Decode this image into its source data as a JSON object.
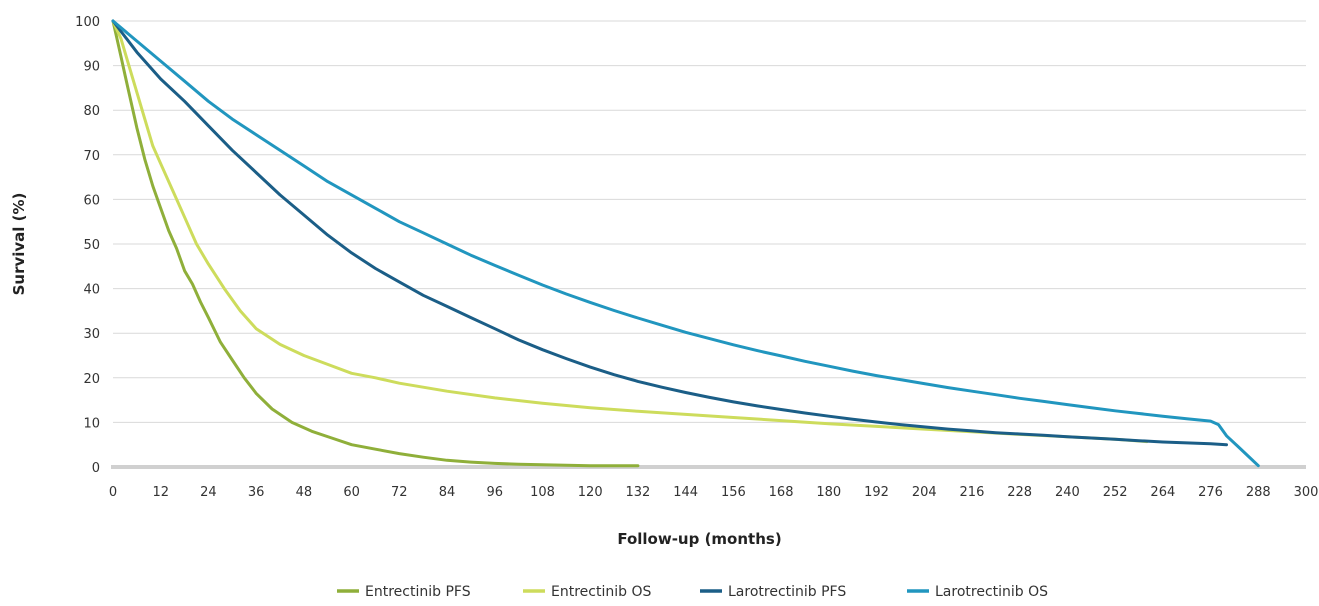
{
  "chart_data": {
    "type": "line",
    "xlabel": "Follow-up (months)",
    "ylabel": "Survival (%)",
    "xlim": [
      0,
      300
    ],
    "ylim": [
      0,
      100
    ],
    "xticks": [
      0,
      12,
      24,
      36,
      48,
      60,
      72,
      84,
      96,
      108,
      120,
      132,
      144,
      156,
      168,
      180,
      192,
      204,
      216,
      228,
      240,
      252,
      264,
      276,
      288,
      300
    ],
    "yticks": [
      0,
      10,
      20,
      30,
      40,
      50,
      60,
      70,
      80,
      90,
      100
    ],
    "grid": "horizontal",
    "legend_position": "bottom",
    "series": [
      {
        "name": "Entrectinib PFS",
        "color": "#8faf3a",
        "x": [
          0,
          1,
          2,
          3,
          4,
          5,
          6,
          8,
          10,
          12,
          14,
          16,
          18,
          20,
          22,
          24,
          27,
          30,
          33,
          36,
          40,
          45,
          50,
          55,
          60,
          66,
          72,
          78,
          84,
          90,
          96,
          102,
          108,
          114,
          120,
          126,
          132
        ],
        "y": [
          100,
          96,
          92,
          88,
          84,
          80,
          76,
          69,
          63,
          58,
          53,
          49,
          44,
          41,
          37,
          33.5,
          28,
          24,
          20,
          16.5,
          13,
          10,
          8,
          6.5,
          5,
          4,
          3,
          2.2,
          1.5,
          1.1,
          0.8,
          0.6,
          0.5,
          0.4,
          0.3,
          0.3,
          0.3
        ]
      },
      {
        "name": "Entrectinib OS",
        "color": "#cddc5c",
        "x": [
          0,
          2,
          4,
          6,
          8,
          10,
          12,
          15,
          18,
          21,
          24,
          28,
          32,
          36,
          42,
          48,
          54,
          60,
          66,
          72,
          84,
          96,
          108,
          120,
          132,
          144,
          156,
          168,
          180,
          192,
          204,
          216,
          228,
          240,
          252,
          260
        ],
        "y": [
          100,
          96,
          90,
          84,
          78,
          72,
          68,
          62,
          56,
          50,
          45.5,
          40,
          35,
          31,
          27.5,
          25,
          23,
          21,
          20,
          18.8,
          17,
          15.5,
          14.3,
          13.3,
          12.5,
          11.8,
          11.1,
          10.4,
          9.7,
          9.1,
          8.5,
          7.9,
          7.3,
          6.8,
          6.2,
          5.7
        ]
      },
      {
        "name": "Larotrectinib PFS",
        "color": "#1b5e87",
        "x": [
          0,
          6,
          12,
          18,
          24,
          30,
          36,
          42,
          48,
          54,
          60,
          66,
          72,
          78,
          84,
          90,
          96,
          102,
          108,
          114,
          120,
          126,
          132,
          138,
          144,
          150,
          156,
          162,
          168,
          174,
          180,
          186,
          192,
          198,
          204,
          210,
          216,
          222,
          228,
          234,
          240,
          246,
          252,
          258,
          264,
          270,
          276,
          280
        ],
        "y": [
          100,
          93,
          87,
          82,
          76.5,
          71,
          66,
          61,
          56.5,
          52,
          48,
          44.5,
          41.5,
          38.5,
          36,
          33.5,
          31,
          28.5,
          26.3,
          24.3,
          22.4,
          20.7,
          19.2,
          17.9,
          16.7,
          15.6,
          14.6,
          13.7,
          12.9,
          12.1,
          11.4,
          10.7,
          10.1,
          9.5,
          9.0,
          8.5,
          8.1,
          7.7,
          7.4,
          7.1,
          6.8,
          6.5,
          6.2,
          5.9,
          5.6,
          5.4,
          5.2,
          5.0
        ]
      },
      {
        "name": "Larotrectinib OS",
        "color": "#2196bf",
        "x": [
          0,
          6,
          12,
          18,
          24,
          30,
          36,
          42,
          48,
          54,
          60,
          66,
          72,
          78,
          84,
          90,
          96,
          102,
          108,
          114,
          120,
          126,
          132,
          138,
          144,
          150,
          156,
          162,
          168,
          174,
          180,
          186,
          192,
          198,
          204,
          210,
          216,
          222,
          228,
          234,
          240,
          246,
          252,
          258,
          264,
          270,
          276,
          278,
          280,
          283,
          286,
          288
        ],
        "y": [
          100,
          95.5,
          91,
          86.5,
          82,
          78,
          74.5,
          71,
          67.5,
          64,
          61,
          58,
          55,
          52.5,
          50,
          47.5,
          45.2,
          43,
          40.8,
          38.8,
          36.9,
          35.1,
          33.4,
          31.8,
          30.2,
          28.8,
          27.4,
          26.1,
          24.9,
          23.7,
          22.6,
          21.5,
          20.5,
          19.6,
          18.7,
          17.8,
          17.0,
          16.2,
          15.4,
          14.7,
          14.0,
          13.3,
          12.6,
          12.0,
          11.4,
          10.8,
          10.3,
          9.5,
          7.0,
          4.5,
          2.0,
          0.3
        ]
      }
    ]
  }
}
